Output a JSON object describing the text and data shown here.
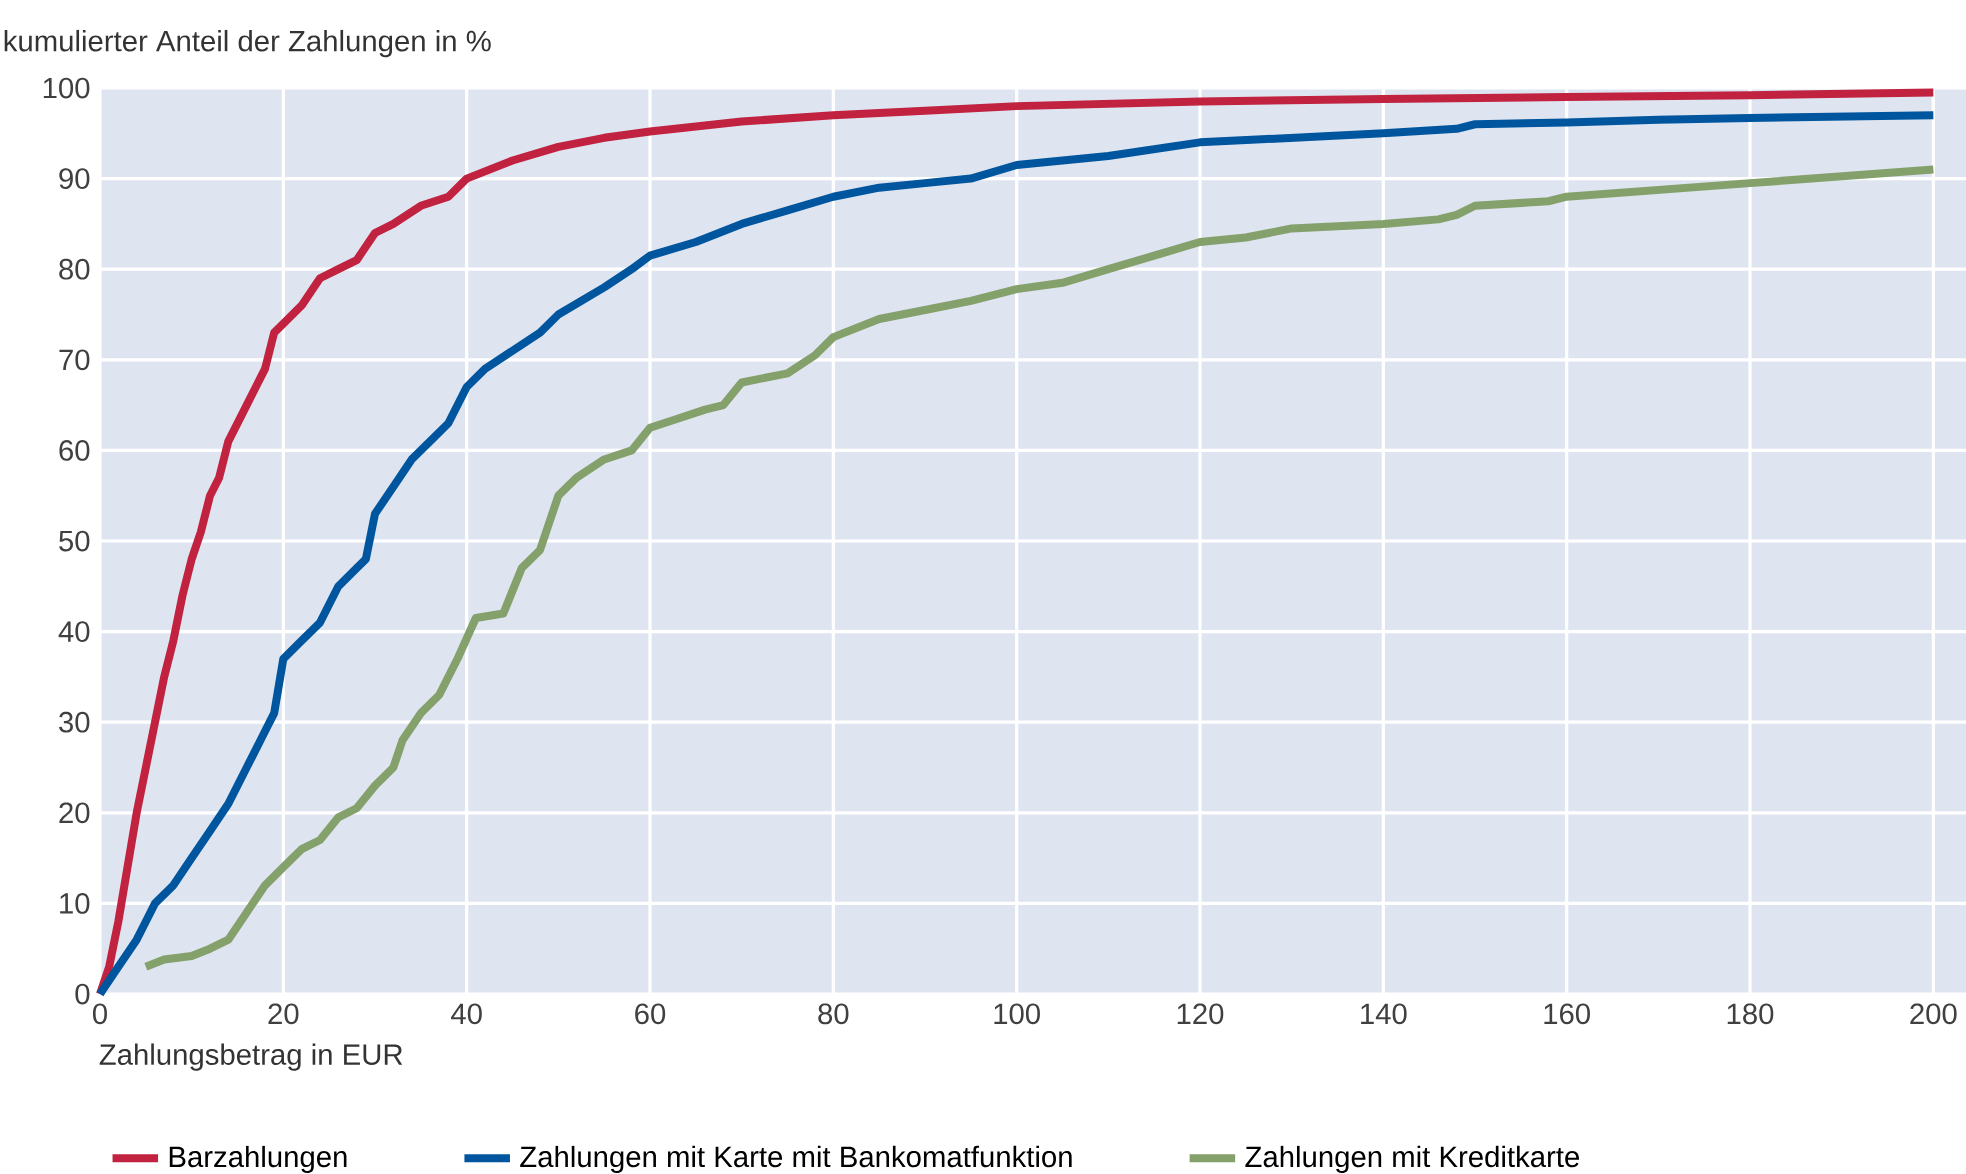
{
  "chart_data": {
    "type": "line",
    "xlabel": "Zahlungsbetrag in EUR",
    "ylabel": "kumulierter Anteil der Zahlungen in %",
    "xlim": [
      0,
      204
    ],
    "ylim": [
      0,
      100
    ],
    "xticks": [
      0,
      20,
      40,
      60,
      80,
      100,
      120,
      140,
      160,
      180,
      200
    ],
    "yticks": [
      0,
      10,
      20,
      30,
      40,
      50,
      60,
      70,
      80,
      90,
      100
    ],
    "grid": true,
    "legend": "bottom",
    "line_style": "solid",
    "series": [
      {
        "name": "Barzahlungen",
        "color": "#c0223f",
        "x": [
          0,
          1,
          2,
          3,
          4,
          5,
          6,
          7,
          8,
          9,
          10,
          11,
          12,
          13,
          14,
          15,
          16,
          17,
          18,
          19,
          20,
          22,
          24,
          26,
          28,
          30,
          32,
          35,
          38,
          40,
          45,
          50,
          55,
          60,
          70,
          80,
          90,
          100,
          120,
          140,
          160,
          180,
          200
        ],
        "values": [
          0,
          3,
          8,
          14,
          20,
          25,
          30,
          35,
          39,
          44,
          48,
          51,
          55,
          57,
          61,
          63,
          65,
          67,
          69,
          73,
          74,
          76,
          79,
          80,
          81,
          84,
          85,
          87,
          88,
          90,
          92,
          93.5,
          94.5,
          95.2,
          96.3,
          97,
          97.5,
          98,
          98.5,
          98.8,
          99,
          99.2,
          99.5
        ]
      },
      {
        "name": "Zahlungen mit Karte mit Bankomatfunktion",
        "color": "#00569e",
        "x": [
          0,
          2,
          4,
          5,
          6,
          8,
          10,
          12,
          14,
          16,
          18,
          19,
          20,
          22,
          24,
          26,
          28,
          29,
          30,
          32,
          34,
          36,
          38,
          40,
          42,
          45,
          48,
          50,
          55,
          58,
          60,
          65,
          70,
          75,
          80,
          85,
          90,
          95,
          100,
          105,
          110,
          120,
          130,
          140,
          148,
          150,
          160,
          170,
          180,
          200
        ],
        "values": [
          0,
          3,
          6,
          8,
          10,
          12,
          15,
          18,
          21,
          25,
          29,
          31,
          37,
          39,
          41,
          45,
          47,
          48,
          53,
          56,
          59,
          61,
          63,
          67,
          69,
          71,
          73,
          75,
          78,
          80,
          81.5,
          83,
          85,
          86.5,
          88,
          89,
          89.5,
          90,
          91.5,
          92,
          92.5,
          94,
          94.5,
          95,
          95.5,
          96,
          96.2,
          96.5,
          96.7,
          97
        ]
      },
      {
        "name": "Zahlungen mit Kreditkarte",
        "color": "#84a06b",
        "x": [
          5,
          7,
          10,
          12,
          14,
          16,
          18,
          20,
          22,
          24,
          26,
          28,
          30,
          32,
          33,
          35,
          37,
          39,
          41,
          44,
          46,
          48,
          50,
          52,
          55,
          58,
          60,
          63,
          66,
          68,
          70,
          75,
          78,
          80,
          85,
          90,
          95,
          100,
          105,
          110,
          115,
          120,
          125,
          130,
          140,
          146,
          148,
          150,
          158,
          160,
          180,
          200
        ],
        "values": [
          3,
          3.8,
          4.2,
          5,
          6,
          9,
          12,
          14,
          16,
          17,
          19.5,
          20.5,
          23,
          25,
          28,
          31,
          33,
          37,
          41.5,
          42,
          47,
          49,
          55,
          57,
          59,
          60,
          62.5,
          63.5,
          64.5,
          65,
          67.5,
          68.5,
          70.5,
          72.5,
          74.5,
          75.5,
          76.5,
          77.8,
          78.5,
          80,
          81.5,
          83,
          83.5,
          84.5,
          85,
          85.5,
          86,
          87,
          87.5,
          88,
          89.5,
          91
        ]
      }
    ]
  }
}
